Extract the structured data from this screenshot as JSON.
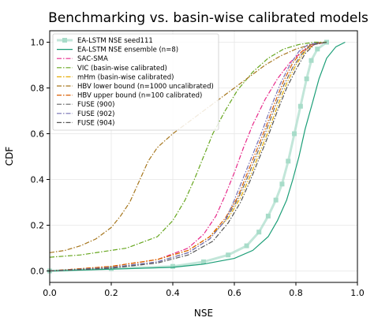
{
  "chart_data": {
    "type": "line",
    "title": "Benchmarking vs. basin-wise calibrated models",
    "xlabel": "NSE",
    "ylabel": "CDF",
    "xlim": [
      0.0,
      1.0
    ],
    "ylim": [
      -0.05,
      1.05
    ],
    "xticks": [
      "0.0",
      "0.2",
      "0.4",
      "0.6",
      "0.8",
      "1.0"
    ],
    "yticks": [
      "0.0",
      "0.2",
      "0.4",
      "0.6",
      "0.8",
      "1.0"
    ],
    "grid": true,
    "legend_position": "top-left",
    "series": [
      {
        "name": "EA-LSTM NSE seed111",
        "color": "#a8dcc9",
        "style": "marker-line",
        "x": [
          0.0,
          0.2,
          0.4,
          0.5,
          0.58,
          0.64,
          0.68,
          0.71,
          0.735,
          0.755,
          0.775,
          0.795,
          0.815,
          0.835,
          0.85,
          0.87,
          0.9
        ],
        "y": [
          0.0,
          0.01,
          0.02,
          0.04,
          0.07,
          0.11,
          0.17,
          0.24,
          0.31,
          0.38,
          0.48,
          0.6,
          0.72,
          0.84,
          0.92,
          0.97,
          1.0
        ]
      },
      {
        "name": "EA-LSTM NSE ensemble (n=8)",
        "color": "#1b9e77",
        "style": "solid",
        "x": [
          0.0,
          0.2,
          0.4,
          0.5,
          0.6,
          0.66,
          0.71,
          0.74,
          0.77,
          0.79,
          0.81,
          0.83,
          0.855,
          0.875,
          0.9,
          0.93,
          0.96
        ],
        "y": [
          0.0,
          0.008,
          0.016,
          0.03,
          0.055,
          0.09,
          0.15,
          0.22,
          0.31,
          0.4,
          0.5,
          0.62,
          0.74,
          0.84,
          0.93,
          0.98,
          1.0
        ]
      },
      {
        "name": "SAC-SMA",
        "color": "#e7298a",
        "style": "dashdot",
        "x": [
          0.0,
          0.2,
          0.35,
          0.45,
          0.5,
          0.54,
          0.57,
          0.6,
          0.63,
          0.66,
          0.7,
          0.74,
          0.78,
          0.82,
          0.86,
          0.9
        ],
        "y": [
          0.0,
          0.02,
          0.05,
          0.1,
          0.16,
          0.24,
          0.33,
          0.43,
          0.54,
          0.64,
          0.75,
          0.84,
          0.91,
          0.96,
          0.99,
          1.0
        ]
      },
      {
        "name": "VIC (basin-wise calibrated)",
        "color": "#66a61e",
        "style": "dashdot",
        "x": [
          0.0,
          0.1,
          0.25,
          0.35,
          0.4,
          0.44,
          0.47,
          0.5,
          0.53,
          0.57,
          0.61,
          0.66,
          0.71,
          0.76,
          0.81,
          0.86,
          0.9
        ],
        "y": [
          0.06,
          0.07,
          0.1,
          0.15,
          0.22,
          0.31,
          0.4,
          0.5,
          0.6,
          0.7,
          0.79,
          0.87,
          0.93,
          0.97,
          0.99,
          1.0,
          1.0
        ]
      },
      {
        "name": "mHm (basin-wise calibrated)",
        "color": "#e6ab02",
        "style": "dashdot",
        "x": [
          0.0,
          0.2,
          0.35,
          0.45,
          0.52,
          0.58,
          0.62,
          0.65,
          0.68,
          0.71,
          0.74,
          0.77,
          0.8,
          0.83,
          0.86,
          0.88
        ],
        "y": [
          0.0,
          0.02,
          0.05,
          0.09,
          0.15,
          0.23,
          0.32,
          0.41,
          0.51,
          0.61,
          0.72,
          0.82,
          0.9,
          0.96,
          0.99,
          1.0
        ]
      },
      {
        "name": "HBV lower bound (n=1000 uncalibrated)",
        "color": "#a6761d",
        "style": "dashdot",
        "x": [
          0.0,
          0.05,
          0.1,
          0.15,
          0.2,
          0.23,
          0.26,
          0.28,
          0.3,
          0.32,
          0.35,
          0.4,
          0.45,
          0.5,
          0.55,
          0.6,
          0.65,
          0.7,
          0.75,
          0.8,
          0.85,
          0.9
        ],
        "y": [
          0.08,
          0.09,
          0.11,
          0.14,
          0.19,
          0.24,
          0.3,
          0.36,
          0.42,
          0.48,
          0.54,
          0.6,
          0.65,
          0.7,
          0.75,
          0.8,
          0.85,
          0.9,
          0.94,
          0.97,
          0.99,
          1.0
        ]
      },
      {
        "name": "HBV upper bound (n=100 calibrated)",
        "color": "#d95f02",
        "style": "dashdot",
        "x": [
          0.0,
          0.2,
          0.35,
          0.45,
          0.52,
          0.57,
          0.61,
          0.64,
          0.67,
          0.7,
          0.73,
          0.76,
          0.79,
          0.82,
          0.85,
          0.88
        ],
        "y": [
          0.0,
          0.02,
          0.05,
          0.09,
          0.15,
          0.23,
          0.32,
          0.42,
          0.52,
          0.62,
          0.73,
          0.83,
          0.91,
          0.96,
          0.99,
          1.0
        ]
      },
      {
        "name": "FUSE (900)",
        "color": "#666666",
        "style": "dashdot",
        "x": [
          0.0,
          0.2,
          0.35,
          0.45,
          0.52,
          0.57,
          0.61,
          0.64,
          0.67,
          0.7,
          0.73,
          0.76,
          0.79,
          0.82,
          0.85,
          0.89
        ],
        "y": [
          0.0,
          0.015,
          0.04,
          0.08,
          0.14,
          0.22,
          0.31,
          0.4,
          0.5,
          0.6,
          0.71,
          0.81,
          0.89,
          0.95,
          0.99,
          1.0
        ]
      },
      {
        "name": "FUSE (902)",
        "color": "#7570b3",
        "style": "dashdot",
        "x": [
          0.0,
          0.2,
          0.35,
          0.45,
          0.52,
          0.57,
          0.6,
          0.63,
          0.66,
          0.69,
          0.72,
          0.75,
          0.78,
          0.81,
          0.84,
          0.88
        ],
        "y": [
          0.0,
          0.015,
          0.04,
          0.08,
          0.14,
          0.22,
          0.31,
          0.41,
          0.51,
          0.61,
          0.72,
          0.82,
          0.9,
          0.96,
          0.99,
          1.0
        ]
      },
      {
        "name": "FUSE (904)",
        "color": "#555555",
        "style": "dashdot",
        "x": [
          0.0,
          0.2,
          0.35,
          0.45,
          0.53,
          0.58,
          0.62,
          0.65,
          0.68,
          0.71,
          0.74,
          0.77,
          0.8,
          0.83,
          0.86,
          0.9
        ],
        "y": [
          0.0,
          0.012,
          0.035,
          0.07,
          0.13,
          0.21,
          0.3,
          0.39,
          0.49,
          0.59,
          0.7,
          0.8,
          0.88,
          0.95,
          0.99,
          1.0
        ]
      }
    ]
  }
}
